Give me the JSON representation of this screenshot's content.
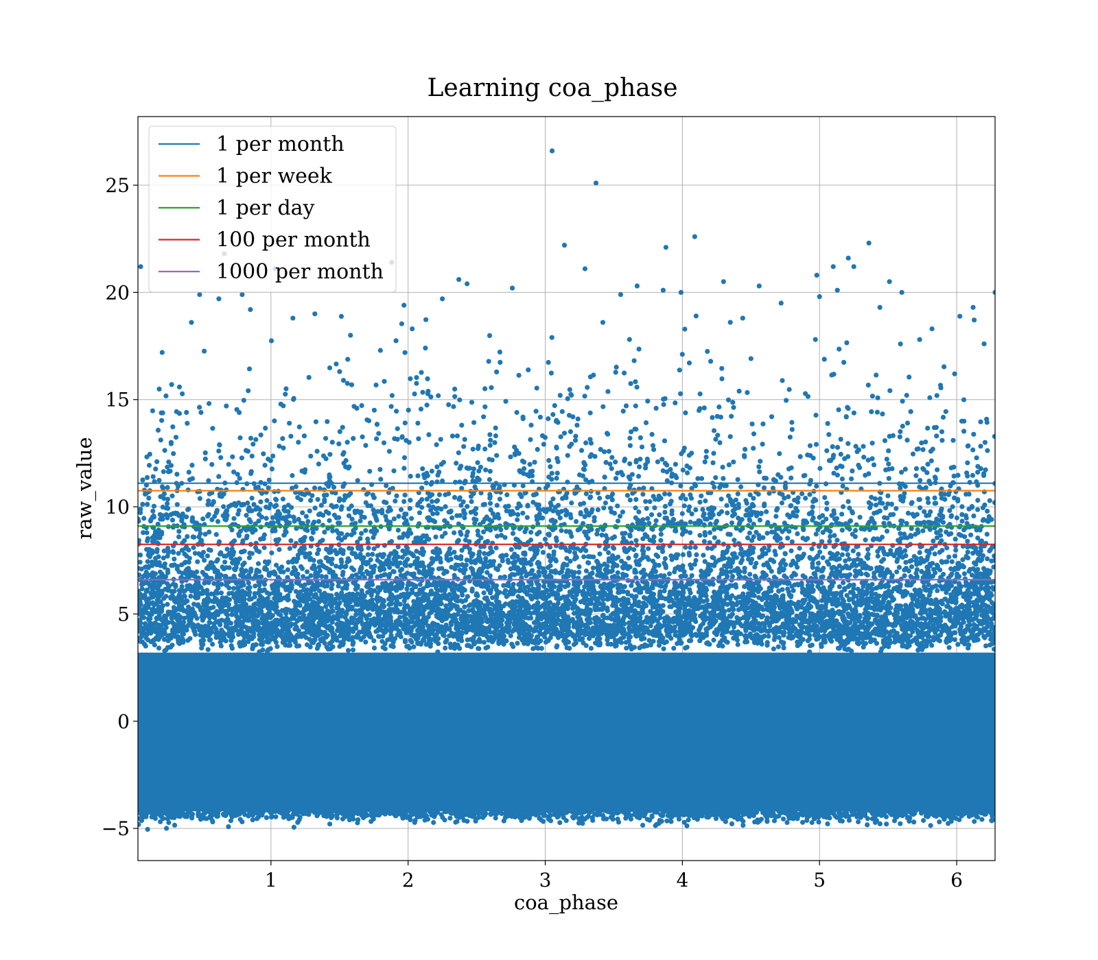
{
  "chart_data": {
    "type": "scatter",
    "title": "Learning coa_phase",
    "xlabel": "coa_phase",
    "ylabel": "raw_value",
    "xlim": [
      0.03,
      6.28
    ],
    "ylim": [
      -6.5,
      28.2
    ],
    "grid": true,
    "legend_placement": "top-left",
    "x_ticks": [
      1,
      2,
      3,
      4,
      5,
      6
    ],
    "x_tick_labels": [
      "1",
      "2",
      "3",
      "4",
      "5",
      "6"
    ],
    "y_ticks": [
      -5,
      0,
      5,
      10,
      15,
      20,
      25
    ],
    "y_tick_labels": [
      "−5",
      "0",
      "5",
      "10",
      "15",
      "20",
      "25"
    ],
    "scatter": {
      "color": "#1f77b4",
      "dense_band": [
        -4.2,
        3.2
      ],
      "outlier_points": [
        [
          3.05,
          26.6
        ],
        [
          3.37,
          25.1
        ],
        [
          4.09,
          22.6
        ],
        [
          3.14,
          22.2
        ],
        [
          3.88,
          22.1
        ],
        [
          5.36,
          22.3
        ],
        [
          0.66,
          21.8
        ],
        [
          5.21,
          21.6
        ],
        [
          5.1,
          21.2
        ],
        [
          5.25,
          21.2
        ],
        [
          0.05,
          21.2
        ],
        [
          1.03,
          21.1
        ],
        [
          3.29,
          21.1
        ],
        [
          1.88,
          21.4
        ],
        [
          4.98,
          20.8
        ],
        [
          2.37,
          20.6
        ],
        [
          4.3,
          20.5
        ],
        [
          4.56,
          20.3
        ],
        [
          2.43,
          20.4
        ],
        [
          3.67,
          20.3
        ],
        [
          5.51,
          20.5
        ],
        [
          6.28,
          20.0
        ],
        [
          0.48,
          19.9
        ],
        [
          0.79,
          19.9
        ],
        [
          3.86,
          20.1
        ],
        [
          3.99,
          20.0
        ],
        [
          5.6,
          20.0
        ],
        [
          5.13,
          20.1
        ],
        [
          5.0,
          19.8
        ],
        [
          2.76,
          20.2
        ],
        [
          3.55,
          19.9
        ],
        [
          4.72,
          19.5
        ],
        [
          2.25,
          19.7
        ],
        [
          0.62,
          19.7
        ],
        [
          1.97,
          19.4
        ],
        [
          5.44,
          19.3
        ],
        [
          6.12,
          19.3
        ],
        [
          1.16,
          18.8
        ],
        [
          1.32,
          19.0
        ],
        [
          0.85,
          19.2
        ],
        [
          0.42,
          18.6
        ],
        [
          4.1,
          18.9
        ],
        [
          3.42,
          18.6
        ],
        [
          4.44,
          18.8
        ],
        [
          5.82,
          18.3
        ],
        [
          1.58,
          18.0
        ],
        [
          2.03,
          18.3
        ],
        [
          5.73,
          17.8
        ],
        [
          6.2,
          17.6
        ]
      ]
    },
    "series": [
      {
        "name": "1 per month",
        "color": "#1f77b4",
        "y": 11.1
      },
      {
        "name": "1 per week",
        "color": "#ff7f0e",
        "y": 10.75
      },
      {
        "name": "1 per day",
        "color": "#2ca02c",
        "y": 9.1
      },
      {
        "name": "100 per month",
        "color": "#d62728",
        "y": 8.25
      },
      {
        "name": "1000 per month",
        "color": "#9467bd",
        "y": 6.6
      }
    ]
  }
}
